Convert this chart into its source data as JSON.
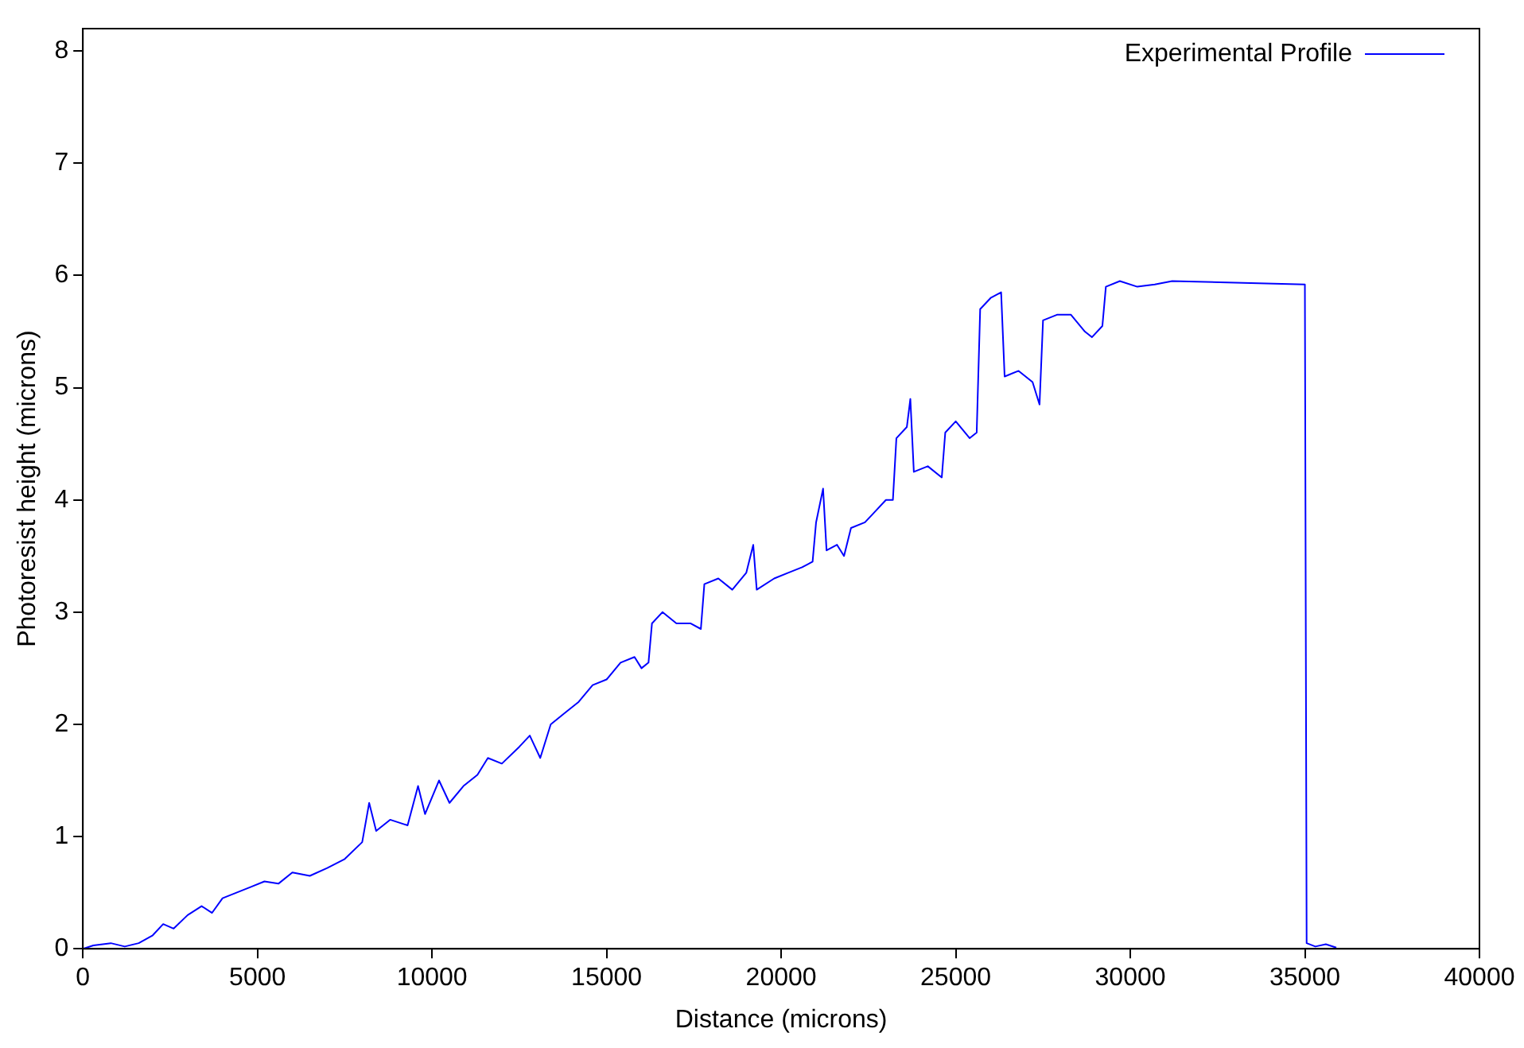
{
  "chart_data": {
    "type": "line",
    "xlabel": "Distance (microns)",
    "ylabel": "Photoresist height (microns)",
    "xlim": [
      0,
      40000
    ],
    "xticks": [
      0,
      5000,
      10000,
      15000,
      20000,
      25000,
      30000,
      35000,
      40000
    ],
    "ylim": [
      0,
      8.2
    ],
    "yticks": [
      0,
      1,
      2,
      3,
      4,
      5,
      6,
      7,
      8
    ],
    "grid": false,
    "legend": "top right",
    "marker": "none",
    "line_style": "solid",
    "series": [
      {
        "name": "Experimental Profile",
        "color": "#0000ff",
        "x": [
          0,
          300,
          800,
          1200,
          1600,
          2000,
          2300,
          2600,
          3000,
          3400,
          3700,
          4000,
          4400,
          4800,
          5200,
          5600,
          6000,
          6500,
          7000,
          7500,
          8000,
          8200,
          8400,
          8800,
          9300,
          9600,
          9800,
          10200,
          10500,
          10900,
          11300,
          11600,
          12000,
          12500,
          12800,
          13100,
          13400,
          13800,
          14200,
          14600,
          15000,
          15400,
          15800,
          16000,
          16200,
          16300,
          16600,
          17000,
          17400,
          17700,
          17800,
          18200,
          18600,
          19000,
          19200,
          19300,
          19800,
          20200,
          20600,
          20900,
          21000,
          21200,
          21300,
          21600,
          21800,
          22000,
          22400,
          22700,
          23000,
          23200,
          23300,
          23600,
          23700,
          23800,
          24200,
          24600,
          24700,
          25000,
          25400,
          25600,
          25700,
          26000,
          26300,
          26400,
          26800,
          27200,
          27400,
          27500,
          27900,
          28300,
          28700,
          28900,
          29200,
          29300,
          29700,
          30200,
          30700,
          31200,
          35000,
          35050,
          35300,
          35600,
          35900
        ],
        "values": [
          0,
          0.03,
          0.05,
          0.02,
          0.05,
          0.12,
          0.22,
          0.18,
          0.3,
          0.38,
          0.32,
          0.45,
          0.5,
          0.55,
          0.6,
          0.58,
          0.68,
          0.65,
          0.72,
          0.8,
          0.95,
          1.3,
          1.05,
          1.15,
          1.1,
          1.45,
          1.2,
          1.5,
          1.3,
          1.45,
          1.55,
          1.7,
          1.65,
          1.8,
          1.9,
          1.7,
          2.0,
          2.1,
          2.2,
          2.35,
          2.4,
          2.55,
          2.6,
          2.5,
          2.55,
          2.9,
          3.0,
          2.9,
          2.9,
          2.85,
          3.25,
          3.3,
          3.2,
          3.35,
          3.6,
          3.2,
          3.3,
          3.35,
          3.4,
          3.45,
          3.8,
          4.1,
          3.55,
          3.6,
          3.5,
          3.75,
          3.8,
          3.9,
          4.0,
          4.0,
          4.55,
          4.65,
          4.9,
          4.25,
          4.3,
          4.2,
          4.6,
          4.7,
          4.55,
          4.6,
          5.7,
          5.8,
          5.85,
          5.1,
          5.15,
          5.05,
          4.85,
          5.6,
          5.65,
          5.65,
          5.5,
          5.45,
          5.55,
          5.9,
          5.95,
          5.9,
          5.92,
          5.95,
          5.92,
          0.05,
          0.02,
          0.04,
          0.01
        ]
      }
    ]
  }
}
